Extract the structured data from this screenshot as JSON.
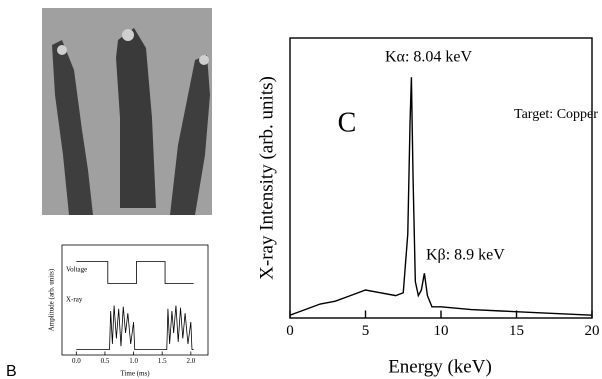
{
  "chart_data": [
    {
      "type": "line",
      "panel_label": "C",
      "xlabel": "Energy (keV)",
      "ylabel": "X-ray Intensity (arb. units)",
      "annotations": [
        "Kα: 8.04 keV",
        "Kβ: 8.9 keV",
        "Target: Copper"
      ],
      "x": [
        0,
        0.5,
        1,
        2,
        3,
        4,
        5,
        6,
        7,
        7.5,
        7.8,
        7.95,
        8.04,
        8.15,
        8.3,
        8.5,
        8.7,
        8.9,
        9.1,
        9.4,
        10,
        11,
        12,
        14,
        16,
        18,
        20
      ],
      "values": [
        0.01,
        0.02,
        0.03,
        0.05,
        0.06,
        0.08,
        0.1,
        0.09,
        0.08,
        0.09,
        0.3,
        0.7,
        0.86,
        0.5,
        0.13,
        0.08,
        0.1,
        0.16,
        0.08,
        0.04,
        0.04,
        0.035,
        0.03,
        0.025,
        0.02,
        0.015,
        0.01
      ],
      "color": "#000000",
      "xlim": [
        0,
        20
      ],
      "xticks": [
        0,
        5,
        10,
        15,
        20
      ],
      "ylim": [
        0,
        1
      ]
    },
    {
      "type": "line",
      "panel_label": "B",
      "xlabel": "Time (ms)",
      "ylabel": "Amplitude (arb. units)",
      "series": [
        {
          "name": "Voltage",
          "color": "#000000",
          "x": [
            0,
            0.55,
            0.55,
            1.05,
            1.05,
            1.55,
            1.55,
            2.05
          ],
          "values": [
            0.85,
            0.85,
            0.65,
            0.65,
            0.85,
            0.85,
            0.65,
            0.65
          ]
        },
        {
          "name": "X-ray",
          "color": "#000000",
          "x": [
            0,
            0.58,
            0.6,
            0.63,
            0.66,
            0.7,
            0.74,
            0.78,
            0.82,
            0.86,
            0.9,
            0.95,
            1.0,
            1.02,
            1.58,
            1.6,
            1.63,
            1.67,
            1.7,
            1.74,
            1.78,
            1.82,
            1.86,
            1.9,
            1.95,
            2.0,
            2.02,
            2.05
          ],
          "values": [
            0.05,
            0.05,
            0.4,
            0.1,
            0.45,
            0.15,
            0.42,
            0.08,
            0.44,
            0.2,
            0.38,
            0.1,
            0.3,
            0.05,
            0.05,
            0.42,
            0.1,
            0.4,
            0.2,
            0.45,
            0.12,
            0.43,
            0.15,
            0.38,
            0.1,
            0.3,
            0.05,
            0.05
          ]
        }
      ],
      "xlim": [
        -0.25,
        2.3
      ],
      "xticks": [
        {
          "value": 0,
          "label": "0.0"
        },
        0.5,
        {
          "value": 1,
          "label": "1.0"
        },
        1.5,
        {
          "value": 2,
          "label": "2.0"
        }
      ],
      "ylim": [
        0,
        1
      ]
    }
  ]
}
